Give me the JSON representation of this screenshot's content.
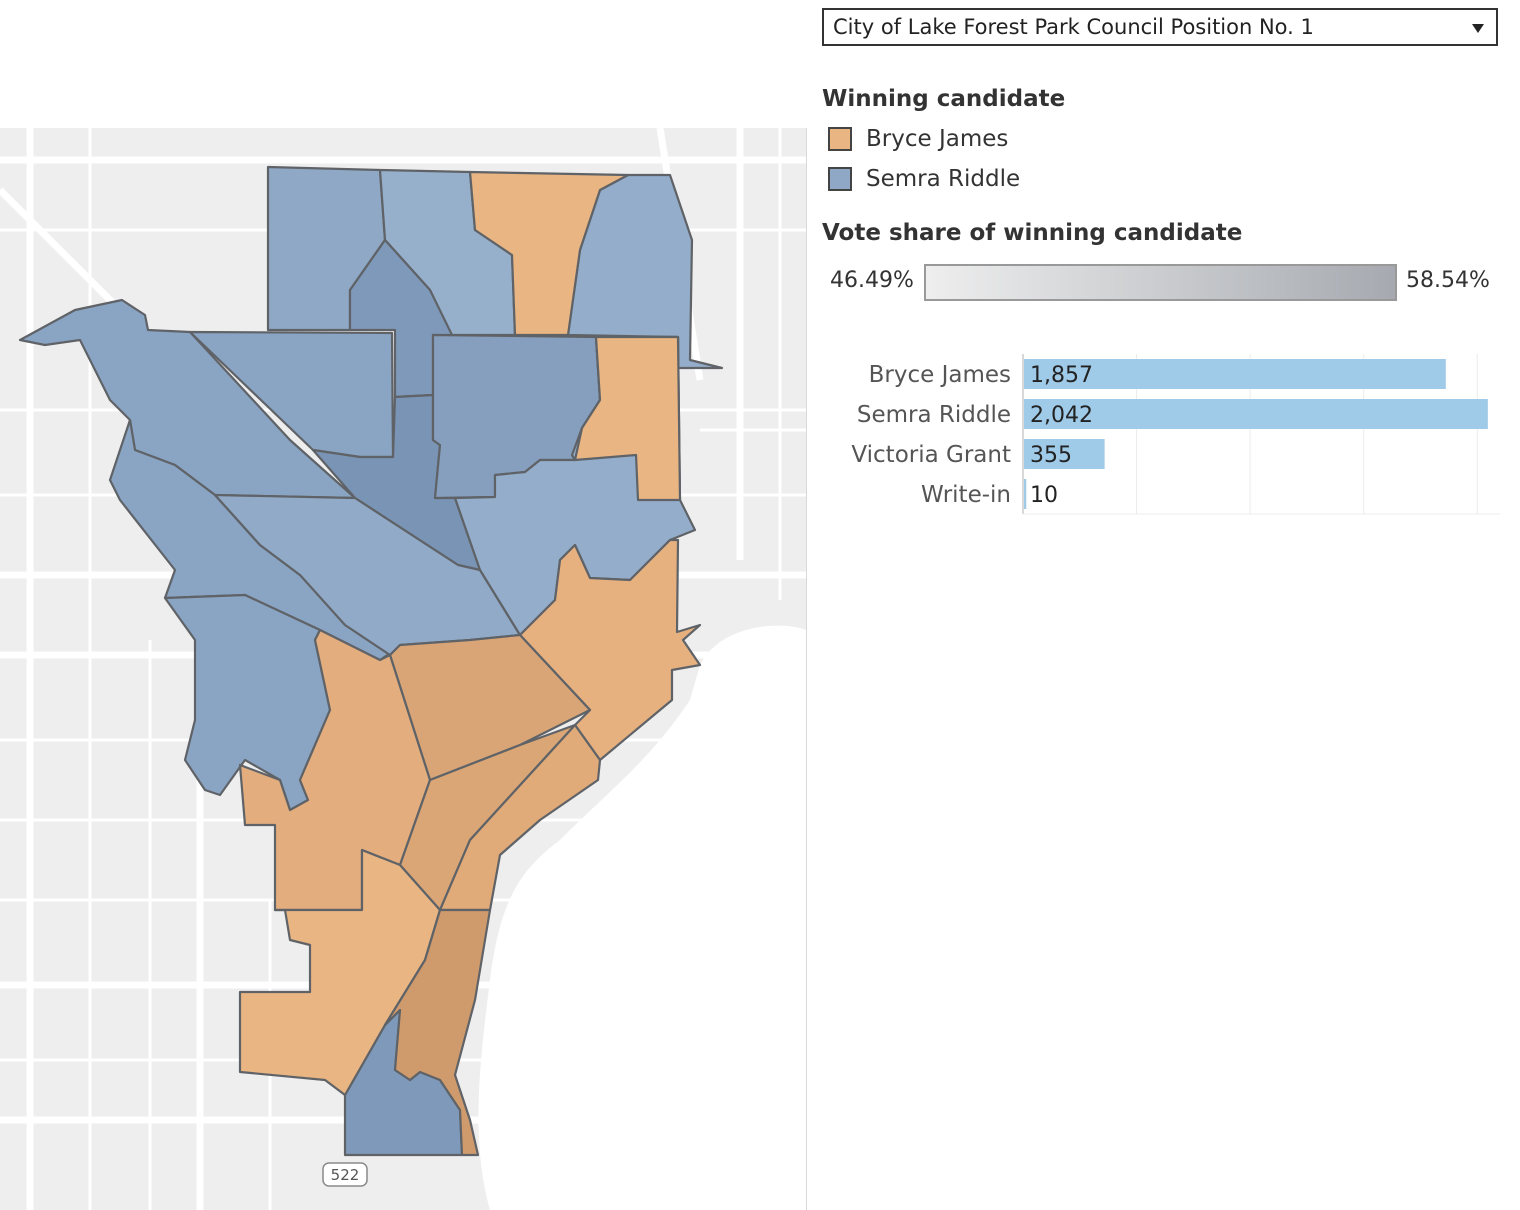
{
  "race_selector": {
    "value": "City of Lake Forest Park Council Position No. 1",
    "icon": "chevron-down-icon"
  },
  "legend_winner": {
    "title": "Winning candidate",
    "items": [
      {
        "label": "Bryce James",
        "color": "#e8b583"
      },
      {
        "label": "Semra Riddle",
        "color": "#8ea8c6"
      }
    ]
  },
  "legend_share": {
    "title": "Vote share of winning candidate",
    "min": "46.49%",
    "max": "58.54%",
    "color_low": "#eeeeee",
    "color_high": "#a6aab0"
  },
  "map": {
    "route_shield": "522",
    "colors": {
      "bryce_james": "#e8b583",
      "semra_riddle": "#8ea8c6",
      "border": "#5f6367",
      "land": "#eeeeee",
      "water": "#ffffff"
    }
  },
  "chart_data": {
    "type": "bar",
    "orientation": "horizontal",
    "categories": [
      "Bryce James",
      "Semra Riddle",
      "Victoria Grant",
      "Write-in"
    ],
    "values": [
      1857,
      2042,
      355,
      10
    ],
    "value_labels": [
      "1,857",
      "2,042",
      "355",
      "10"
    ],
    "bar_color": "#9fcae8",
    "xlim": [
      0,
      2100
    ],
    "gridlines": [
      500,
      1000,
      1500,
      2000
    ],
    "grid": true
  }
}
